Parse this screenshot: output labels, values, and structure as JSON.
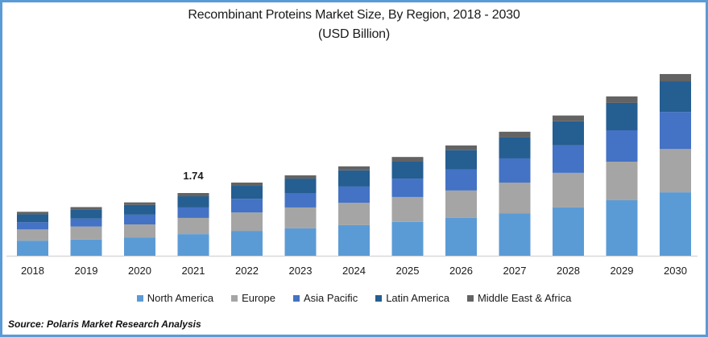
{
  "chart_data": {
    "type": "bar",
    "stacked": true,
    "title": "Recombinant Proteins Market Size, By Region, 2018 - 2030",
    "subtitle": "(USD Billion)",
    "xlabel": "",
    "ylabel": "",
    "ylim": [
      0,
      5.2
    ],
    "grid": false,
    "legend_position": "bottom",
    "categories": [
      "2018",
      "2019",
      "2020",
      "2021",
      "2022",
      "2023",
      "2024",
      "2025",
      "2026",
      "2027",
      "2028",
      "2029",
      "2030"
    ],
    "series": [
      {
        "name": "North America",
        "color": "#5B9BD5",
        "values": [
          0.42,
          0.45,
          0.51,
          0.6,
          0.69,
          0.76,
          0.85,
          0.94,
          1.05,
          1.18,
          1.34,
          1.54,
          1.76
        ]
      },
      {
        "name": "Europe",
        "color": "#A5A5A5",
        "values": [
          0.31,
          0.36,
          0.36,
          0.45,
          0.51,
          0.58,
          0.62,
          0.69,
          0.76,
          0.85,
          0.96,
          1.07,
          1.2
        ]
      },
      {
        "name": "Asia Pacific",
        "color": "#4472C4",
        "values": [
          0.2,
          0.22,
          0.27,
          0.29,
          0.38,
          0.4,
          0.45,
          0.51,
          0.58,
          0.67,
          0.76,
          0.87,
          1.03
        ]
      },
      {
        "name": "Latin America",
        "color": "#255E91",
        "values": [
          0.22,
          0.25,
          0.27,
          0.31,
          0.36,
          0.4,
          0.45,
          0.47,
          0.54,
          0.58,
          0.67,
          0.76,
          0.85
        ]
      },
      {
        "name": "Middle East & Africa",
        "color": "#636363",
        "values": [
          0.07,
          0.07,
          0.07,
          0.09,
          0.09,
          0.09,
          0.11,
          0.13,
          0.13,
          0.16,
          0.16,
          0.18,
          0.2
        ]
      }
    ],
    "annotations": [
      {
        "category": "2021",
        "label": "1.74"
      }
    ]
  },
  "source": "Source: Polaris  Market Research Analysis"
}
